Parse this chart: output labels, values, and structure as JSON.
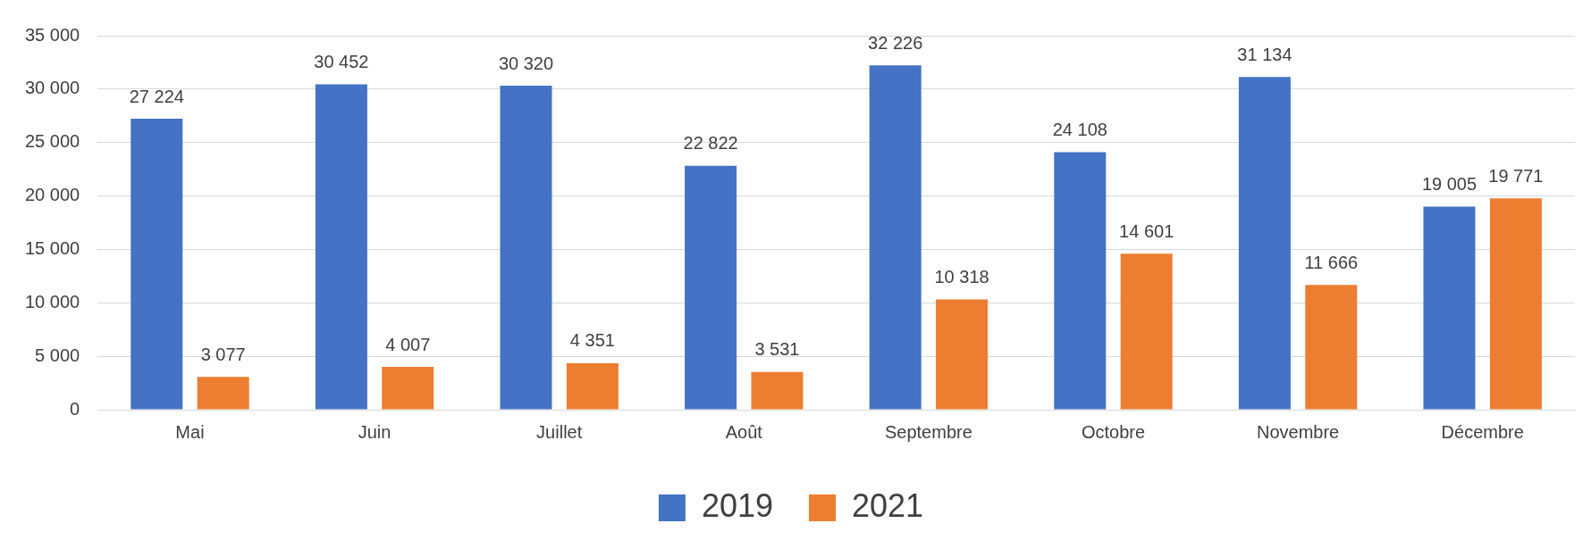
{
  "chart_data": {
    "type": "bar",
    "categories": [
      "Mai",
      "Juin",
      "Juillet",
      "Août",
      "Septembre",
      "Octobre",
      "Novembre",
      "Décembre"
    ],
    "series": [
      {
        "name": "2019",
        "color": "#4472c4",
        "values": [
          27224,
          30452,
          30320,
          22822,
          32226,
          24108,
          31134,
          19005
        ],
        "value_labels": [
          "27 224",
          "30 452",
          "30 320",
          "22 822",
          "32 226",
          "24 108",
          "31 134",
          "19 005"
        ]
      },
      {
        "name": "2021",
        "color": "#ed7d31",
        "values": [
          3077,
          4007,
          4351,
          3531,
          10318,
          14601,
          11666,
          19771
        ],
        "value_labels": [
          "3 077",
          "4 007",
          "4 351",
          "3 531",
          "10 318",
          "14 601",
          "11 666",
          "19 771"
        ]
      }
    ],
    "ylim": [
      0,
      35000
    ],
    "yticks": [
      {
        "value": 0,
        "label": "0"
      },
      {
        "value": 5000,
        "label": "5 000"
      },
      {
        "value": 10000,
        "label": "10 000"
      },
      {
        "value": 15000,
        "label": "15 000"
      },
      {
        "value": 20000,
        "label": "20 000"
      },
      {
        "value": 25000,
        "label": "25 000"
      },
      {
        "value": 30000,
        "label": "30 000"
      },
      {
        "value": 35000,
        "label": "35 000"
      }
    ],
    "grid": "y",
    "legend": "bottom"
  }
}
